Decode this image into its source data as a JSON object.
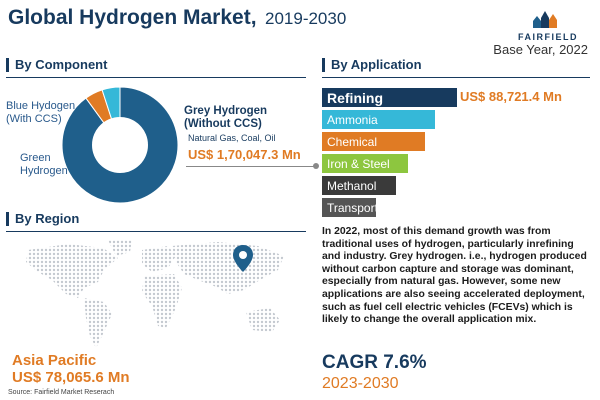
{
  "header": {
    "title": "Global Hydrogen Market,",
    "years": "2019-2030",
    "brand": "FAIRFIELD",
    "base_year": "Base Year, 2022"
  },
  "component": {
    "heading": "By Component",
    "blue_label": [
      "Blue Hydogen",
      "(With CCS)"
    ],
    "green_label": [
      "Green",
      "Hydrogen"
    ],
    "grey_label": [
      "Grey Hydrogen",
      "(Without CCS)"
    ],
    "grey_sub": "Natural Gas, Coal, Oil",
    "grey_value": "US$ 1,70,047.3 Mn"
  },
  "application": {
    "heading": "By Application",
    "lead_value": "US$ 88,721.4 Mn"
  },
  "region": {
    "heading": "By Region",
    "name": "Asia Pacific",
    "value": "US$ 78,065.6 Mn"
  },
  "description": "In 2022, most of this demand growth was from traditional uses of hydrogen, particularly inrefining and industry. Grey hydrogen. i.e., hydrogen produced without carbon capture and storage was dominant, especially from natural gas. However, some new applications are also seeing accelerated deployment, such as fuel cell electric vehicles (FCEVs) which is likely to change the overall application mix.",
  "cagr": {
    "label": "CAGR 7.6%",
    "period": "2023-2030"
  },
  "source": "Source: Fairfield Market Reserach",
  "colors": {
    "navy": "#173a5e",
    "grey_hydrogen": "#1f5f8b",
    "blue_hydrogen": "#e07b24",
    "green_hydrogen": "#35b8d8",
    "accent": "#e07b24"
  },
  "chart_data": [
    {
      "type": "pie",
      "variant": "donut",
      "categories": [
        "Grey Hydrogen (Without CCS)",
        "Blue Hydogen (With CCS)",
        "Green Hydrogen"
      ],
      "values": [
        90,
        5,
        5
      ],
      "colors": [
        "#1f5f8b",
        "#e07b24",
        "#35b8d8"
      ]
    },
    {
      "type": "bar",
      "orientation": "horizontal",
      "categories": [
        "Refining",
        "Ammonia",
        "Chemical",
        "Iron & Steel",
        "Methanol",
        "Transport"
      ],
      "values": [
        100,
        84,
        76,
        64,
        55,
        40
      ],
      "colors": [
        "#173a5e",
        "#35b8d8",
        "#e07b24",
        "#8dc63f",
        "#3a3a3a",
        "#555555"
      ],
      "data_labels": [
        "US$ 88,721.4 Mn",
        "",
        "",
        "",
        "",
        ""
      ]
    }
  ]
}
